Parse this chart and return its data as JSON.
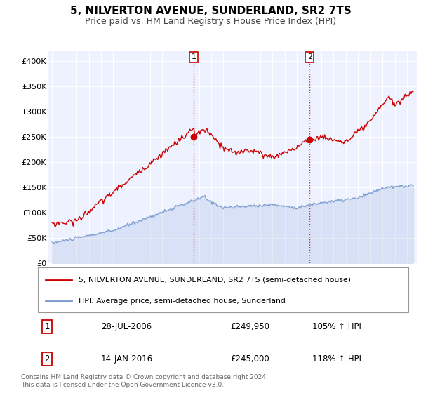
{
  "title": "5, NILVERTON AVENUE, SUNDERLAND, SR2 7TS",
  "subtitle": "Price paid vs. HM Land Registry's House Price Index (HPI)",
  "title_fontsize": 11,
  "subtitle_fontsize": 9,
  "red_color": "#cc0000",
  "blue_color": "#7799cc",
  "background_color": "#ffffff",
  "plot_bg_color": "#eef2ff",
  "ylim": [
    0,
    420000
  ],
  "yticks": [
    0,
    50000,
    100000,
    150000,
    200000,
    250000,
    300000,
    350000,
    400000
  ],
  "ytick_labels": [
    "£0",
    "£50K",
    "£100K",
    "£150K",
    "£200K",
    "£250K",
    "£300K",
    "£350K",
    "£400K"
  ],
  "marker1_date": 2006.57,
  "marker1_value": 249950,
  "marker2_date": 2016.04,
  "marker2_value": 245000,
  "legend_line1": "5, NILVERTON AVENUE, SUNDERLAND, SR2 7TS (semi-detached house)",
  "legend_line2": "HPI: Average price, semi-detached house, Sunderland",
  "annotation1_date": "28-JUL-2006",
  "annotation1_price": "£249,950",
  "annotation1_hpi": "105% ↑ HPI",
  "annotation2_date": "14-JAN-2016",
  "annotation2_price": "£245,000",
  "annotation2_hpi": "118% ↑ HPI",
  "footnote": "Contains HM Land Registry data © Crown copyright and database right 2024.\nThis data is licensed under the Open Government Licence v3.0."
}
